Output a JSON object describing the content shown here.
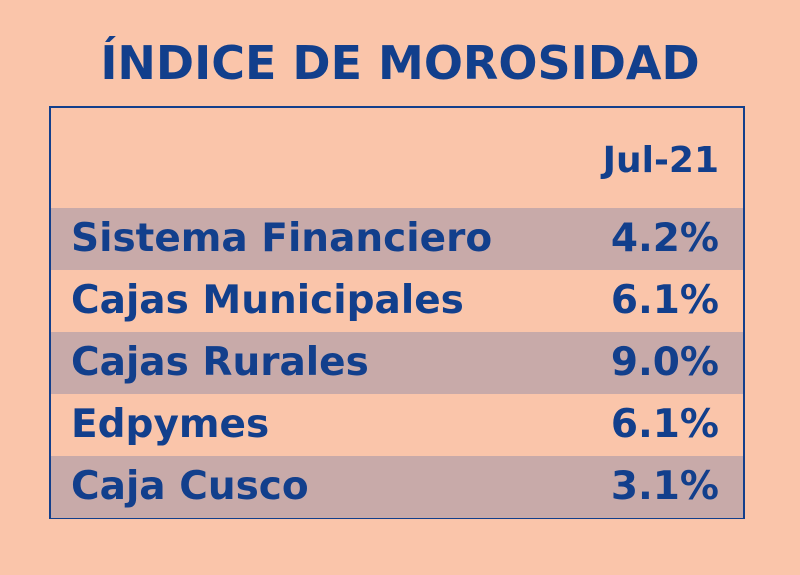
{
  "chart_data": {
    "type": "table",
    "title": "ÍNDICE DE MOROSIDAD",
    "column_header": "Jul-21",
    "rows": [
      {
        "label": "Sistema Financiero",
        "value": "4.2%"
      },
      {
        "label": "Cajas Municipales",
        "value": "6.1%"
      },
      {
        "label": "Cajas Rurales",
        "value": "9.0%"
      },
      {
        "label": "Edpymes",
        "value": "6.1%"
      },
      {
        "label": "Caja Cusco",
        "value": "3.1%"
      }
    ]
  },
  "colors": {
    "background": "#fac5aa",
    "text": "#123f8c",
    "row_shade": "#c8aaa9"
  }
}
